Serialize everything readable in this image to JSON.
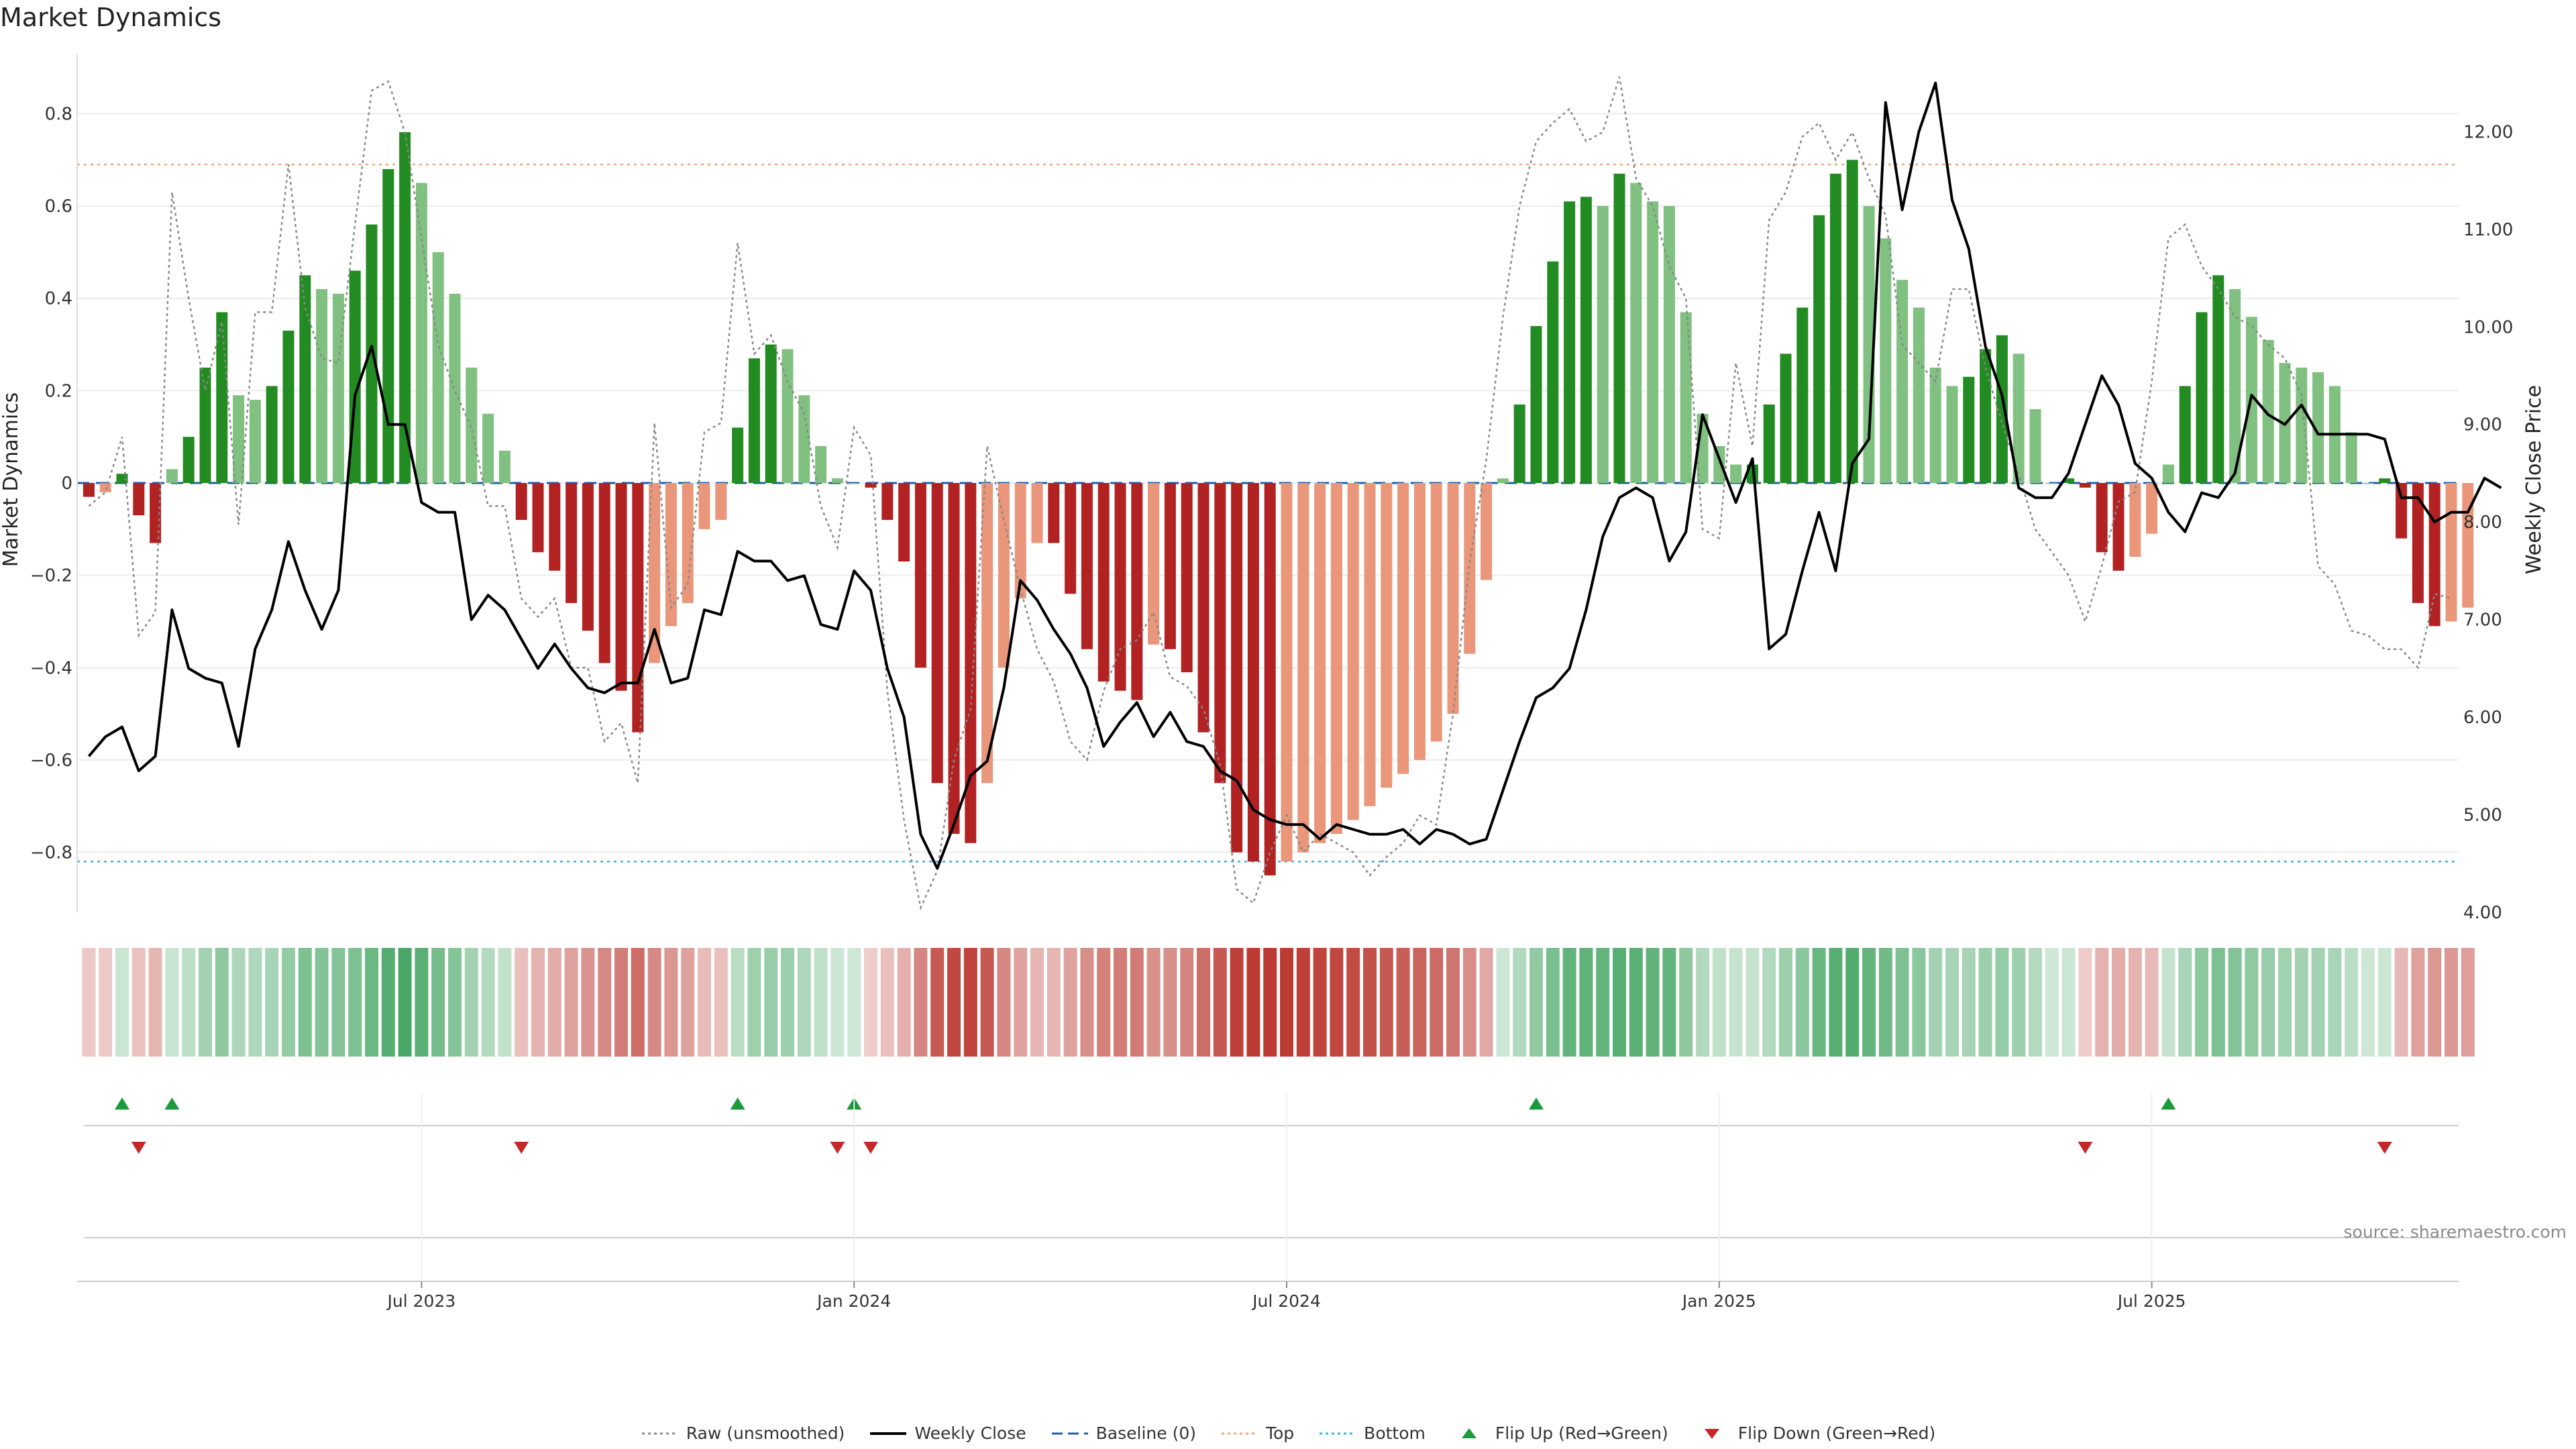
{
  "title": "Market Dynamics",
  "source": "source: sharemaestro.com",
  "colors": {
    "strong_green": "#228b22",
    "weak_green": "#80c080",
    "strong_red": "#b22222",
    "weak_red": "#e9967a",
    "price_line": "#000000",
    "raw_line": "#888888",
    "baseline": "#1f5fa8",
    "top": "#e9a67a",
    "bottom": "#40b0d0",
    "flip_up": "#1a9a3a",
    "flip_down": "#c62828"
  },
  "legend": [
    {
      "key": "raw",
      "label": "Raw (unsmoothed)",
      "icon": "dotted-line-icon"
    },
    {
      "key": "close",
      "label": "Weekly Close",
      "icon": "solid-line-icon"
    },
    {
      "key": "baseline",
      "label": "Baseline (0)",
      "icon": "dashed-line-icon"
    },
    {
      "key": "top",
      "label": "Top",
      "icon": "dotted-line-icon"
    },
    {
      "key": "bottom",
      "label": "Bottom",
      "icon": "dotted-line-icon"
    },
    {
      "key": "flip_up",
      "label": "Flip Up (Red→Green)",
      "icon": "triangle-up-icon"
    },
    {
      "key": "flip_down",
      "label": "Flip Down (Green→Red)",
      "icon": "triangle-down-icon"
    }
  ],
  "chart_data": {
    "type": "bar",
    "title": "Market Dynamics",
    "ylabel": "Market Dynamics",
    "y2label": "Weekly Close Price",
    "ylim": [
      -0.93,
      0.93
    ],
    "y2lim": [
      4.0,
      12.8
    ],
    "yticks": [
      -0.8,
      -0.6,
      -0.4,
      -0.2,
      0,
      0.2,
      0.4,
      0.6,
      0.8
    ],
    "yticklabels": [
      "−0.8",
      "−0.6",
      "−0.4",
      "−0.2",
      "0",
      "0.2",
      "0.4",
      "0.6",
      "0.8"
    ],
    "y2ticks": [
      4,
      5,
      6,
      7,
      8,
      9,
      10,
      11,
      12
    ],
    "y2ticklabels": [
      "4.00",
      "5.00",
      "6.00",
      "7.00",
      "8.00",
      "9.00",
      "10.00",
      "11.00",
      "12.00"
    ],
    "xlim_weeks": [
      0,
      143
    ],
    "xticks": [
      {
        "week": 20,
        "label": "Jul 2023"
      },
      {
        "week": 46,
        "label": "Jan 2024"
      },
      {
        "week": 72,
        "label": "Jul 2024"
      },
      {
        "week": 98,
        "label": "Jan 2025"
      },
      {
        "week": 124,
        "label": "Jul 2025"
      }
    ],
    "baseline": 0,
    "top": 0.69,
    "bottom": -0.82,
    "legend_position": "bottom-center",
    "series": [
      {
        "name": "Market Dynamics",
        "values": [
          -0.03,
          -0.02,
          0.02,
          -0.07,
          -0.13,
          0.03,
          0.1,
          0.25,
          0.37,
          0.19,
          0.18,
          0.21,
          0.33,
          0.45,
          0.42,
          0.41,
          0.46,
          0.56,
          0.68,
          0.76,
          0.65,
          0.5,
          0.41,
          0.25,
          0.15,
          0.07,
          -0.08,
          -0.15,
          -0.19,
          -0.26,
          -0.32,
          -0.39,
          -0.45,
          -0.54,
          -0.39,
          -0.31,
          -0.26,
          -0.1,
          -0.08,
          0.12,
          0.27,
          0.3,
          0.29,
          0.19,
          0.08,
          0.01,
          0,
          -0.01,
          -0.08,
          -0.17,
          -0.4,
          -0.65,
          -0.76,
          -0.78,
          -0.65,
          -0.4,
          -0.25,
          -0.13,
          -0.13,
          -0.24,
          -0.36,
          -0.43,
          -0.45,
          -0.47,
          -0.35,
          -0.36,
          -0.41,
          -0.54,
          -0.65,
          -0.8,
          -0.82,
          -0.85,
          -0.82,
          -0.8,
          -0.78,
          -0.76,
          -0.73,
          -0.7,
          -0.66,
          -0.63,
          -0.6,
          -0.56,
          -0.5,
          -0.37,
          -0.21,
          0.01,
          0.17,
          0.34,
          0.48,
          0.61,
          0.62,
          0.6,
          0.67,
          0.65,
          0.61,
          0.6,
          0.37,
          0.15,
          0.08,
          0.04,
          0.04,
          0.17,
          0.28,
          0.38,
          0.58,
          0.67,
          0.7,
          0.6,
          0.53,
          0.44,
          0.38,
          0.25,
          0.21,
          0.23,
          0.29,
          0.32,
          0.28,
          0.16,
          0,
          0.01,
          -0.01,
          -0.15,
          -0.19,
          -0.16,
          -0.11,
          0.04,
          0.21,
          0.37,
          0.45,
          0.42,
          0.36,
          0.31,
          0.26,
          0.25,
          0.24,
          0.21,
          0.11,
          0,
          0.01,
          -0.12,
          -0.26,
          -0.31,
          -0.3,
          -0.27
        ]
      },
      {
        "name": "Raw (unsmoothed)",
        "values": [
          -0.05,
          -0.02,
          0.1,
          -0.33,
          -0.28,
          0.63,
          0.4,
          0.2,
          0.35,
          -0.09,
          0.37,
          0.37,
          0.69,
          0.38,
          0.27,
          0.26,
          0.56,
          0.85,
          0.87,
          0.76,
          0.53,
          0.3,
          0.2,
          0.12,
          -0.05,
          -0.05,
          -0.25,
          -0.29,
          -0.25,
          -0.4,
          -0.4,
          -0.56,
          -0.52,
          -0.65,
          0.13,
          -0.27,
          -0.22,
          0.11,
          0.13,
          0.52,
          0.28,
          0.32,
          0.22,
          0.15,
          -0.05,
          -0.14,
          0.12,
          0.06,
          -0.45,
          -0.73,
          -0.92,
          -0.84,
          -0.6,
          -0.49,
          0.08,
          -0.08,
          -0.23,
          -0.36,
          -0.43,
          -0.56,
          -0.6,
          -0.45,
          -0.36,
          -0.34,
          -0.28,
          -0.42,
          -0.44,
          -0.49,
          -0.61,
          -0.88,
          -0.91,
          -0.8,
          -0.72,
          -0.8,
          -0.76,
          -0.78,
          -0.8,
          -0.85,
          -0.81,
          -0.78,
          -0.72,
          -0.74,
          -0.5,
          -0.17,
          0.05,
          0.36,
          0.6,
          0.74,
          0.78,
          0.81,
          0.74,
          0.76,
          0.88,
          0.66,
          0.6,
          0.47,
          0.4,
          -0.1,
          -0.12,
          0.26,
          0.08,
          0.57,
          0.63,
          0.75,
          0.78,
          0.7,
          0.76,
          0.66,
          0.58,
          0.3,
          0.26,
          0.22,
          0.42,
          0.42,
          0.25,
          0.13,
          0.02,
          -0.1,
          -0.15,
          -0.2,
          -0.3,
          -0.18,
          -0.04,
          -0.02,
          0.22,
          0.53,
          0.56,
          0.47,
          0.42,
          0.36,
          0.34,
          0.3,
          0.27,
          0.19,
          -0.18,
          -0.22,
          -0.32,
          -0.33,
          -0.36,
          -0.36,
          -0.4,
          -0.24,
          -0.25
        ]
      },
      {
        "name": "Weekly Close",
        "values": [
          5.6,
          5.8,
          5.9,
          5.45,
          5.6,
          7.1,
          6.5,
          6.4,
          6.35,
          5.7,
          6.7,
          7.1,
          7.8,
          7.3,
          6.9,
          7.3,
          9.3,
          9.8,
          9.0,
          9.0,
          8.2,
          8.1,
          8.1,
          7.0,
          7.25,
          7.1,
          6.8,
          6.5,
          6.75,
          6.5,
          6.3,
          6.25,
          6.35,
          6.35,
          6.9,
          6.35,
          6.4,
          7.1,
          7.05,
          7.7,
          7.6,
          7.6,
          7.4,
          7.45,
          6.95,
          6.9,
          7.5,
          7.3,
          6.5,
          6.0,
          4.8,
          4.45,
          4.9,
          5.4,
          5.55,
          6.3,
          7.4,
          7.2,
          6.9,
          6.65,
          6.3,
          5.7,
          5.95,
          6.15,
          5.8,
          6.05,
          5.75,
          5.7,
          5.45,
          5.35,
          5.05,
          4.95,
          4.9,
          4.9,
          4.75,
          4.9,
          4.85,
          4.8,
          4.8,
          4.85,
          4.7,
          4.85,
          4.8,
          4.7,
          4.75,
          5.25,
          5.75,
          6.2,
          6.3,
          6.5,
          7.1,
          7.85,
          8.25,
          8.35,
          8.25,
          7.6,
          7.9,
          9.1,
          8.65,
          8.2,
          8.65,
          6.7,
          6.85,
          7.5,
          8.1,
          7.5,
          8.6,
          8.85,
          12.3,
          11.2,
          12.0,
          12.5,
          11.3,
          10.8,
          9.8,
          9.3,
          8.35,
          8.25,
          8.25,
          8.5,
          9.0,
          9.5,
          9.2,
          8.6,
          8.45,
          8.1,
          7.9,
          8.3,
          8.25,
          8.5,
          9.3,
          9.1,
          9.0,
          9.2,
          8.9,
          8.9,
          8.9,
          8.9,
          8.85,
          8.25,
          8.25,
          8.0,
          8.1,
          8.1,
          8.45,
          8.35
        ]
      }
    ],
    "regime_strip": {
      "label": "",
      "note": "colour band of market state per week (green = bullish, red = bearish; darker = stronger)"
    },
    "flips": {
      "up_weeks": [
        2,
        5,
        39,
        46,
        87,
        125
      ],
      "down_weeks": [
        3,
        26,
        45,
        47,
        120,
        138
      ]
    }
  }
}
